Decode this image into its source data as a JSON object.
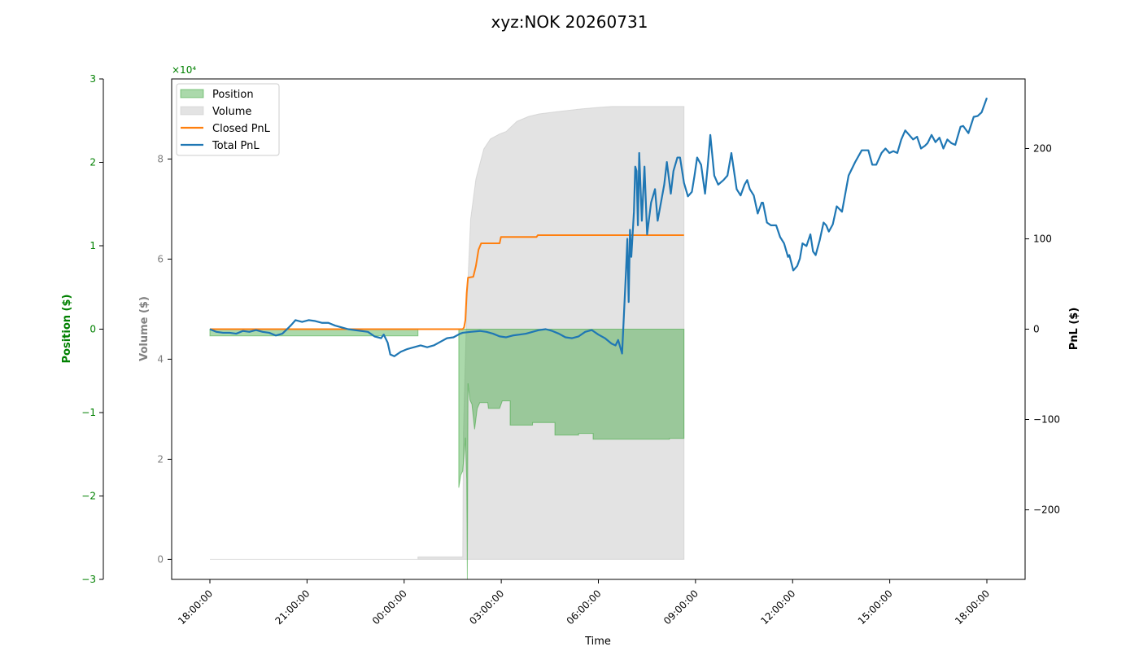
{
  "chart_data": {
    "type": "area",
    "title": "xyz:NOK 20260731",
    "xlabel": "Time",
    "x_ticks": [
      "18:00:00",
      "21:00:00",
      "00:00:00",
      "03:00:00",
      "06:00:00",
      "09:00:00",
      "12:00:00",
      "15:00:00",
      "18:00:00"
    ],
    "x_range": [
      "2026-07-30 18:00:00",
      "2026-07-31 18:00:00"
    ],
    "axes": {
      "position": {
        "label": "Position ($)",
        "ylim": [
          -3,
          3
        ],
        "ticks": [
          -3,
          -2,
          -1,
          0,
          1,
          2,
          3
        ],
        "tick_labels": [
          "−3",
          "−2",
          "−1",
          "0",
          "1",
          "2",
          "3"
        ],
        "scale_label": "×10⁴",
        "color": "#008000",
        "side": "left-outer"
      },
      "volume": {
        "label": "Volume ($)",
        "ylim": [
          -0.4,
          9.6
        ],
        "ticks": [
          0,
          2,
          4,
          6,
          8
        ],
        "tick_labels": [
          "0",
          "2",
          "4",
          "6",
          "8"
        ],
        "color": "#808080",
        "side": "left-inner"
      },
      "pnl": {
        "label": "PnL ($)",
        "ylim": [
          -277,
          277
        ],
        "ticks": [
          -200,
          -100,
          0,
          100,
          200
        ],
        "tick_labels": [
          "−200",
          "−100",
          "0",
          "100",
          "200"
        ],
        "color": "#000000",
        "side": "right"
      }
    },
    "legend": {
      "placement": "top-left",
      "entries": [
        {
          "label": "Position",
          "kind": "area",
          "color": "#2ca02c"
        },
        {
          "label": "Volume",
          "kind": "area",
          "color": "#c8c8c8"
        },
        {
          "label": "Closed PnL",
          "kind": "line",
          "color": "#ff7f0e"
        },
        {
          "label": "Total PnL",
          "kind": "line",
          "color": "#1f77b4"
        }
      ]
    },
    "series": [
      {
        "name": "Position",
        "axis": "position",
        "style": "area",
        "color": "#2ca02c",
        "points": [
          [
            0,
            -0.08
          ],
          [
            15.8,
            -0.08
          ],
          [
            15.8,
            0
          ],
          [
            18.9,
            0
          ],
          [
            18.9,
            -1.9
          ],
          [
            19.05,
            -1.75
          ],
          [
            19.2,
            -1.7
          ],
          [
            19.4,
            -1.3
          ],
          [
            19.5,
            -1.8
          ],
          [
            19.55,
            -3.0
          ],
          [
            19.6,
            -0.65
          ],
          [
            19.75,
            -0.85
          ],
          [
            19.9,
            -0.9
          ],
          [
            20.1,
            -1.2
          ],
          [
            20.3,
            -0.95
          ],
          [
            20.5,
            -0.88
          ],
          [
            21.1,
            -0.88
          ],
          [
            21.15,
            -0.95
          ],
          [
            22.0,
            -0.95
          ],
          [
            22.2,
            -0.86
          ],
          [
            22.8,
            -0.86
          ],
          [
            22.8,
            -1.15
          ],
          [
            24.5,
            -1.15
          ],
          [
            24.5,
            -1.12
          ],
          [
            26.2,
            -1.12
          ],
          [
            26.2,
            -1.27
          ],
          [
            28.0,
            -1.27
          ],
          [
            28.0,
            -1.25
          ],
          [
            29.1,
            -1.25
          ],
          [
            29.1,
            -1.32
          ],
          [
            34.9,
            -1.32
          ],
          [
            34.9,
            -1.31
          ],
          [
            36,
            -1.31
          ]
        ]
      },
      {
        "name": "Volume",
        "axis": "volume",
        "style": "area",
        "color": "#c8c8c8",
        "points": [
          [
            0,
            0
          ],
          [
            15.8,
            0
          ],
          [
            15.8,
            0.05
          ],
          [
            19.2,
            0.05
          ],
          [
            19.25,
            2.5
          ],
          [
            19.5,
            5.0
          ],
          [
            19.8,
            6.8
          ],
          [
            20.2,
            7.6
          ],
          [
            20.5,
            7.9
          ],
          [
            20.8,
            8.2
          ],
          [
            21.3,
            8.4
          ],
          [
            22.0,
            8.5
          ],
          [
            22.5,
            8.55
          ],
          [
            23.3,
            8.75
          ],
          [
            24.2,
            8.85
          ],
          [
            25.0,
            8.9
          ],
          [
            26.5,
            8.95
          ],
          [
            28.2,
            9.0
          ],
          [
            29.5,
            9.03
          ],
          [
            30.5,
            9.05
          ],
          [
            36,
            9.05
          ]
        ]
      },
      {
        "name": "Closed PnL",
        "axis": "pnl",
        "style": "line",
        "color": "#ff7f0e",
        "points": [
          [
            0,
            0
          ],
          [
            19.2,
            0
          ],
          [
            19.3,
            2
          ],
          [
            19.4,
            10
          ],
          [
            19.5,
            40
          ],
          [
            19.6,
            57
          ],
          [
            20.0,
            58
          ],
          [
            20.2,
            70
          ],
          [
            20.4,
            88
          ],
          [
            20.6,
            95
          ],
          [
            22.0,
            95
          ],
          [
            22.1,
            102
          ],
          [
            24.8,
            102
          ],
          [
            24.9,
            104
          ],
          [
            36,
            104
          ]
        ]
      },
      {
        "name": "Total PnL",
        "axis": "pnl",
        "style": "line",
        "color": "#1f77b4",
        "points": [
          [
            0,
            0
          ],
          [
            0.5,
            -3
          ],
          [
            1.0,
            -4
          ],
          [
            1.5,
            -4
          ],
          [
            2.0,
            -5
          ],
          [
            2.5,
            -2
          ],
          [
            3.0,
            -3
          ],
          [
            3.5,
            -1
          ],
          [
            4.0,
            -3
          ],
          [
            4.5,
            -4
          ],
          [
            5.0,
            -7
          ],
          [
            5.5,
            -5
          ],
          [
            6.0,
            2
          ],
          [
            6.2,
            5
          ],
          [
            6.5,
            10
          ],
          [
            7.0,
            8
          ],
          [
            7.5,
            10
          ],
          [
            8.0,
            9
          ],
          [
            8.5,
            7
          ],
          [
            9.0,
            7
          ],
          [
            9.5,
            4
          ],
          [
            10.0,
            2
          ],
          [
            10.5,
            0
          ],
          [
            11.0,
            -1
          ],
          [
            12.0,
            -3
          ],
          [
            12.5,
            -8
          ],
          [
            13.0,
            -10
          ],
          [
            13.2,
            -6
          ],
          [
            13.5,
            -15
          ],
          [
            13.7,
            -28
          ],
          [
            14.0,
            -30
          ],
          [
            14.5,
            -25
          ],
          [
            15.0,
            -22
          ],
          [
            15.5,
            -20
          ],
          [
            16.0,
            -18
          ],
          [
            16.5,
            -20
          ],
          [
            17.0,
            -18
          ],
          [
            17.5,
            -14
          ],
          [
            18.0,
            -10
          ],
          [
            18.5,
            -9
          ],
          [
            19.0,
            -5
          ],
          [
            19.2,
            -4
          ],
          [
            19.8,
            -3
          ],
          [
            20.5,
            -2
          ],
          [
            21.0,
            -3
          ],
          [
            21.5,
            -5
          ],
          [
            22.0,
            -8
          ],
          [
            22.5,
            -9
          ],
          [
            23.0,
            -7
          ],
          [
            23.5,
            -6
          ],
          [
            24.0,
            -5
          ],
          [
            24.5,
            -3
          ],
          [
            25.0,
            -1
          ],
          [
            25.5,
            0
          ],
          [
            26.0,
            -2
          ],
          [
            26.5,
            -5
          ],
          [
            27.0,
            -9
          ],
          [
            27.5,
            -10
          ],
          [
            28.0,
            -8
          ],
          [
            28.5,
            -3
          ],
          [
            29.0,
            -1
          ],
          [
            29.5,
            -6
          ],
          [
            30.0,
            -10
          ],
          [
            30.5,
            -16
          ],
          [
            30.8,
            -18
          ],
          [
            31.0,
            -12
          ],
          [
            31.3,
            -27
          ],
          [
            31.6,
            65
          ],
          [
            31.7,
            100
          ],
          [
            31.8,
            30
          ],
          [
            31.9,
            110
          ],
          [
            32.0,
            80
          ],
          [
            32.2,
            130
          ],
          [
            32.3,
            180
          ],
          [
            32.4,
            175
          ],
          [
            32.5,
            115
          ],
          [
            32.6,
            195
          ],
          [
            32.8,
            120
          ],
          [
            33.0,
            180
          ],
          [
            33.2,
            105
          ],
          [
            33.5,
            140
          ],
          [
            33.8,
            155
          ],
          [
            34.0,
            120
          ],
          [
            34.5,
            160
          ],
          [
            34.7,
            185
          ],
          [
            35.0,
            150
          ],
          [
            35.2,
            175
          ],
          [
            35.5,
            190
          ],
          [
            35.7,
            190
          ],
          [
            36.0,
            162
          ],
          [
            36.3,
            147
          ],
          [
            36.6,
            152
          ],
          [
            36.8,
            170
          ],
          [
            37.0,
            190
          ],
          [
            37.3,
            182
          ],
          [
            37.6,
            150
          ],
          [
            37.8,
            180
          ],
          [
            38.0,
            215
          ],
          [
            38.3,
            170
          ],
          [
            38.6,
            160
          ],
          [
            39.0,
            165
          ],
          [
            39.3,
            170
          ],
          [
            39.6,
            195
          ],
          [
            40.0,
            155
          ],
          [
            40.3,
            148
          ],
          [
            40.6,
            160
          ],
          [
            40.8,
            165
          ],
          [
            41.0,
            155
          ],
          [
            41.3,
            148
          ],
          [
            41.6,
            128
          ],
          [
            41.9,
            140
          ],
          [
            42.0,
            140
          ],
          [
            42.3,
            118
          ],
          [
            42.6,
            115
          ],
          [
            43.0,
            115
          ],
          [
            43.3,
            102
          ],
          [
            43.6,
            95
          ],
          [
            43.9,
            80
          ],
          [
            44.0,
            82
          ],
          [
            44.3,
            65
          ],
          [
            44.6,
            70
          ],
          [
            44.8,
            78
          ],
          [
            45.0,
            95
          ],
          [
            45.3,
            92
          ],
          [
            45.6,
            105
          ],
          [
            45.8,
            86
          ],
          [
            46.0,
            82
          ],
          [
            46.3,
            98
          ],
          [
            46.6,
            118
          ],
          [
            46.8,
            115
          ],
          [
            47.0,
            108
          ],
          [
            47.3,
            116
          ],
          [
            47.6,
            136
          ],
          [
            48.0,
            130
          ],
          [
            48.5,
            170
          ],
          [
            49.0,
            185
          ],
          [
            49.5,
            198
          ],
          [
            50.0,
            198
          ],
          [
            50.3,
            182
          ],
          [
            50.6,
            182
          ],
          [
            51.0,
            195
          ],
          [
            51.3,
            200
          ],
          [
            51.6,
            195
          ],
          [
            51.9,
            197
          ],
          [
            52.2,
            195
          ],
          [
            52.5,
            210
          ],
          [
            52.8,
            220
          ],
          [
            53.1,
            215
          ],
          [
            53.4,
            210
          ],
          [
            53.7,
            213
          ],
          [
            54.0,
            200
          ],
          [
            54.3,
            203
          ],
          [
            54.5,
            206
          ],
          [
            54.8,
            215
          ],
          [
            55.1,
            207
          ],
          [
            55.4,
            212
          ],
          [
            55.7,
            200
          ],
          [
            56.0,
            210
          ],
          [
            56.3,
            206
          ],
          [
            56.6,
            204
          ],
          [
            57.0,
            224
          ],
          [
            57.2,
            225
          ],
          [
            57.6,
            217
          ],
          [
            58.0,
            235
          ],
          [
            58.3,
            236
          ],
          [
            58.6,
            240
          ],
          [
            59.0,
            256
          ]
        ]
      }
    ]
  }
}
